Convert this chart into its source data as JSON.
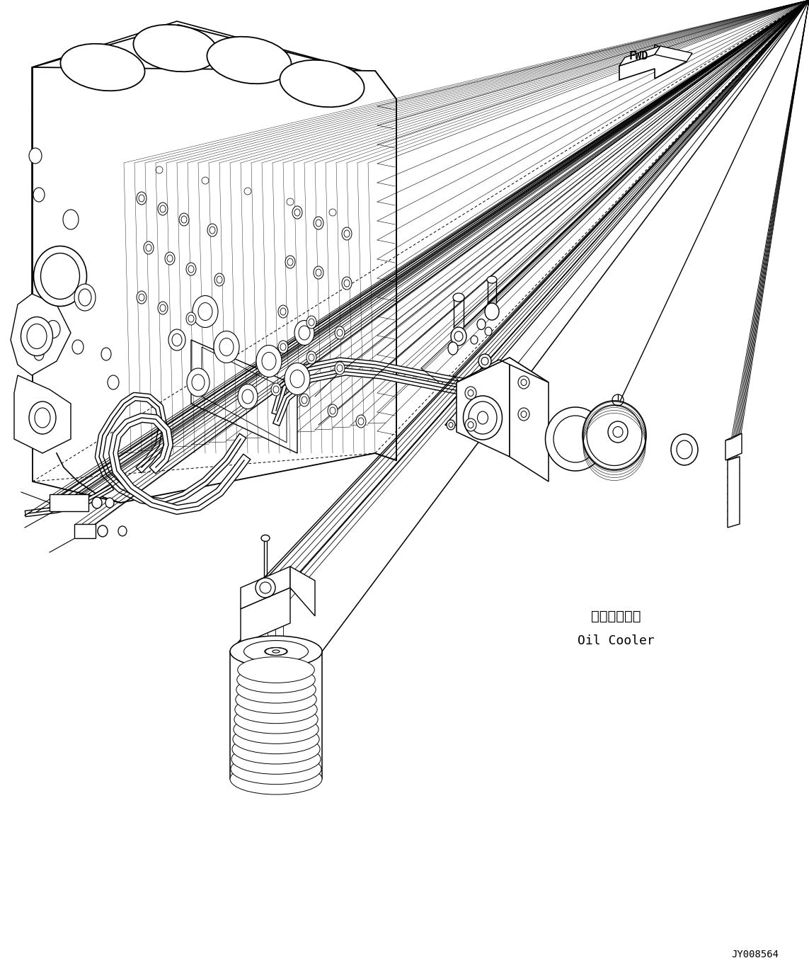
{
  "background_color": "#ffffff",
  "line_color": "#000000",
  "fig_width": 11.43,
  "fig_height": 13.84,
  "dpi": 100,
  "label_japanese": "オイルクーラ",
  "label_english": "Oil Cooler",
  "part_number": "JY008564",
  "fwd_label": "FWD"
}
